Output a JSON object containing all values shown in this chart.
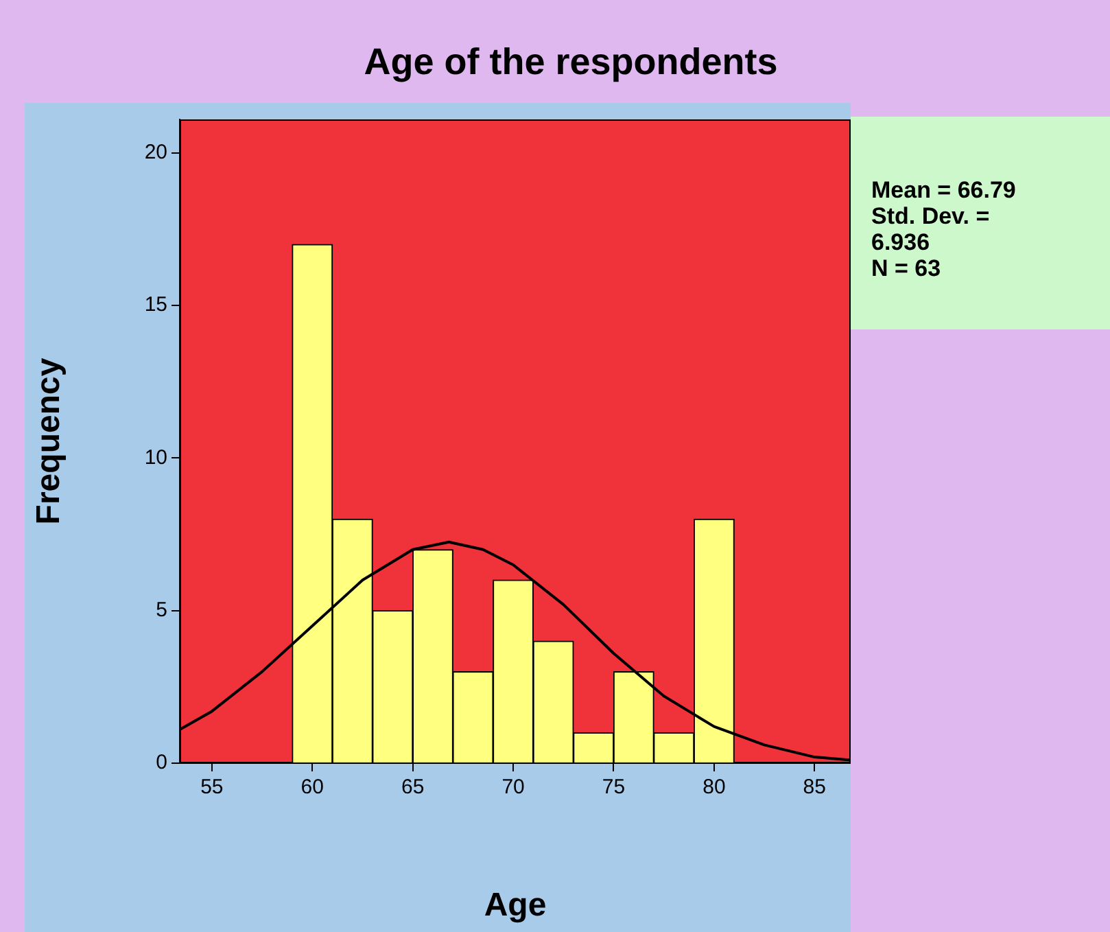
{
  "chart_data": {
    "type": "histogram",
    "title": "Age of the respondents",
    "xlabel": "Age",
    "ylabel": "Frequency",
    "bins": [
      59,
      61,
      63,
      65,
      67,
      69,
      71,
      73,
      75,
      77,
      79,
      81
    ],
    "values": [
      17,
      8,
      5,
      7,
      3,
      6,
      4,
      1,
      3,
      1,
      8
    ],
    "color": "#ffff80",
    "series": [
      {
        "type": "line",
        "color": "#000000",
        "x": [
          53.4,
          55,
          57.5,
          60,
          62.5,
          65,
          66.8,
          68.5,
          70,
          72.5,
          75,
          77.5,
          80,
          82.5,
          85,
          86.8
        ],
        "values": [
          1.1,
          1.7,
          3.0,
          4.5,
          6.0,
          7.0,
          7.25,
          7.0,
          6.5,
          5.2,
          3.6,
          2.2,
          1.2,
          0.6,
          0.2,
          0.1
        ]
      }
    ],
    "xlim": [
      53.4,
      86.8
    ],
    "xticks": [
      55,
      60,
      65,
      70,
      75,
      80,
      85
    ],
    "ylim": [
      0,
      21.1
    ],
    "yticks": [
      0,
      5,
      10,
      15,
      20
    ],
    "grid": false,
    "legend": false,
    "annotations": [
      "Mean = 66.79",
      "Std. Dev. = 6.936",
      "N = 63"
    ]
  }
}
